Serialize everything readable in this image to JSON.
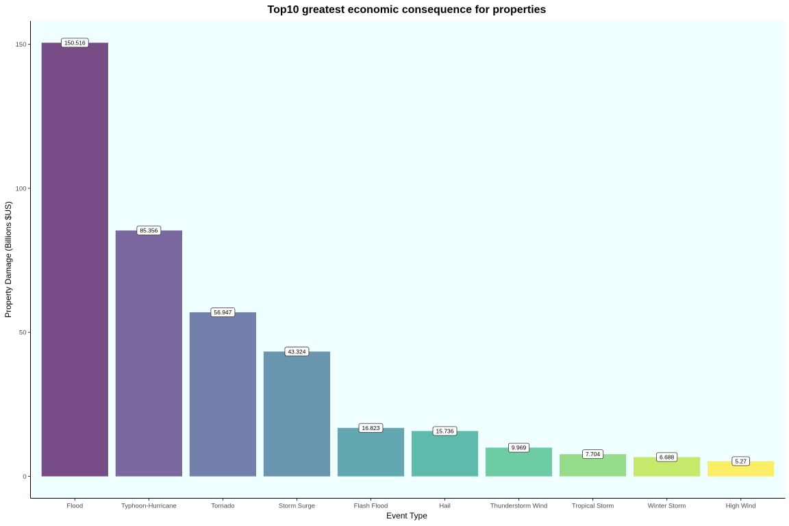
{
  "chart_data": {
    "type": "bar",
    "title": "Top10 greatest economic consequence for properties",
    "xlabel": "Event Type",
    "ylabel": "Property Damage (Billions $US)",
    "categories": [
      "Flood",
      "Typhoon-Hurricane",
      "Tornado",
      "Storm Surge",
      "Flash Flood",
      "Hail",
      "Thunderstorm Wind",
      "Tropical Storm",
      "Winter Storm",
      "High Wind"
    ],
    "values": [
      150.516,
      85.356,
      56.947,
      43.324,
      16.823,
      15.736,
      9.969,
      7.704,
      6.688,
      5.27
    ],
    "data_labels": [
      "150.516",
      "85.356",
      "56.947",
      "43.324",
      "16.823",
      "15.736",
      "9.969",
      "7.704",
      "6.688",
      "5.27"
    ],
    "bar_colors": [
      "#440154",
      "#482878",
      "#3E4A89",
      "#31688E",
      "#26828E",
      "#1F9E89",
      "#35B779",
      "#6DCD59",
      "#B4DE2C",
      "#FDE725"
    ],
    "bar_opacity": 0.7,
    "ylim": [
      -7.6,
      158.1
    ],
    "yticks": [
      0,
      50,
      100,
      150
    ],
    "panel_background": "#F0FFFF",
    "grid": false,
    "legend": "none"
  }
}
